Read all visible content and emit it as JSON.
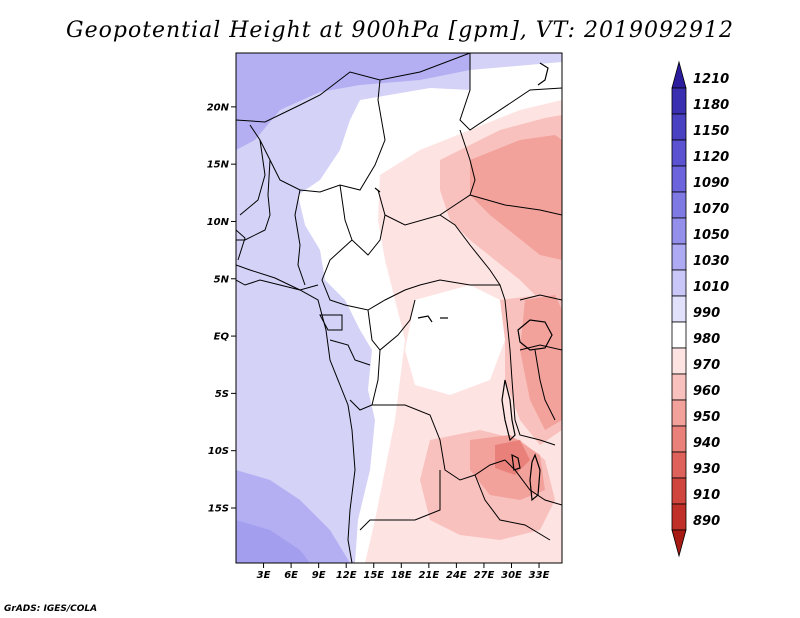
{
  "title": "Geopotential Height at 900hPa [gpm], VT: 2019092912",
  "credit": "GrADS: IGES/COLA",
  "map": {
    "lat_ticks": [
      "20N",
      "15N",
      "10N",
      "5N",
      "EQ",
      "5S",
      "10S",
      "15S"
    ],
    "lat_values": [
      20,
      15,
      10,
      5,
      0,
      -5,
      -10,
      -15
    ],
    "lon_ticks": [
      "3E",
      "6E",
      "9E",
      "12E",
      "15E",
      "18E",
      "21E",
      "24E",
      "27E",
      "30E",
      "33E"
    ],
    "lon_values": [
      3,
      6,
      9,
      12,
      15,
      18,
      21,
      24,
      27,
      30,
      33
    ]
  },
  "colorbar": {
    "levels": [
      "1210",
      "1180",
      "1150",
      "1120",
      "1090",
      "1070",
      "1050",
      "1030",
      "1010",
      "990",
      "980",
      "970",
      "960",
      "950",
      "940",
      "930",
      "910",
      "890"
    ],
    "colors": [
      "#2b1d9e",
      "#3a2fb0",
      "#4a40c2",
      "#5a52d0",
      "#6b64dc",
      "#7f79e4",
      "#958fec",
      "#aeaaf3",
      "#c9c6f8",
      "#e2e1fc",
      "#ffffff",
      "#fde3e1",
      "#f9c1bd",
      "#f2a19b",
      "#e9817a",
      "#de625b",
      "#d0463f",
      "#c03028",
      "#a81b14"
    ]
  }
}
